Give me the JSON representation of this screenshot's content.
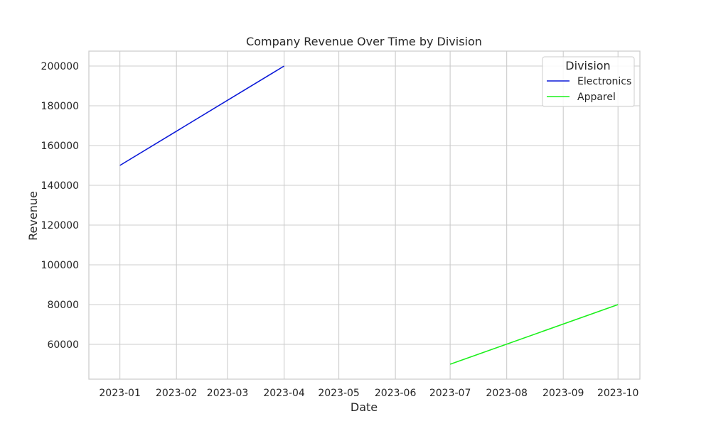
{
  "chart_data": {
    "type": "line",
    "title": "Company Revenue Over Time by Division",
    "xlabel": "Date",
    "ylabel": "Revenue",
    "x_tick_labels": [
      "2023-01",
      "2023-02",
      "2023-03",
      "2023-04",
      "2023-05",
      "2023-06",
      "2023-07",
      "2023-08",
      "2023-09",
      "2023-10"
    ],
    "y_ticks": [
      60000,
      80000,
      100000,
      120000,
      140000,
      160000,
      180000,
      200000
    ],
    "xlim": [
      "2022-12-15",
      "2023-10-13"
    ],
    "ylim": [
      42500,
      207500
    ],
    "grid": true,
    "legend": {
      "title": "Division",
      "placement": "top-right"
    },
    "series": [
      {
        "name": "Electronics",
        "color": "#0a18d8",
        "points": [
          {
            "x": "2023-01-01",
            "y": 150000
          },
          {
            "x": "2023-04-01",
            "y": 200000
          }
        ]
      },
      {
        "name": "Apparel",
        "color": "#1cf01c",
        "points": [
          {
            "x": "2023-07-01",
            "y": 50000
          },
          {
            "x": "2023-10-01",
            "y": 80000
          }
        ]
      }
    ]
  }
}
